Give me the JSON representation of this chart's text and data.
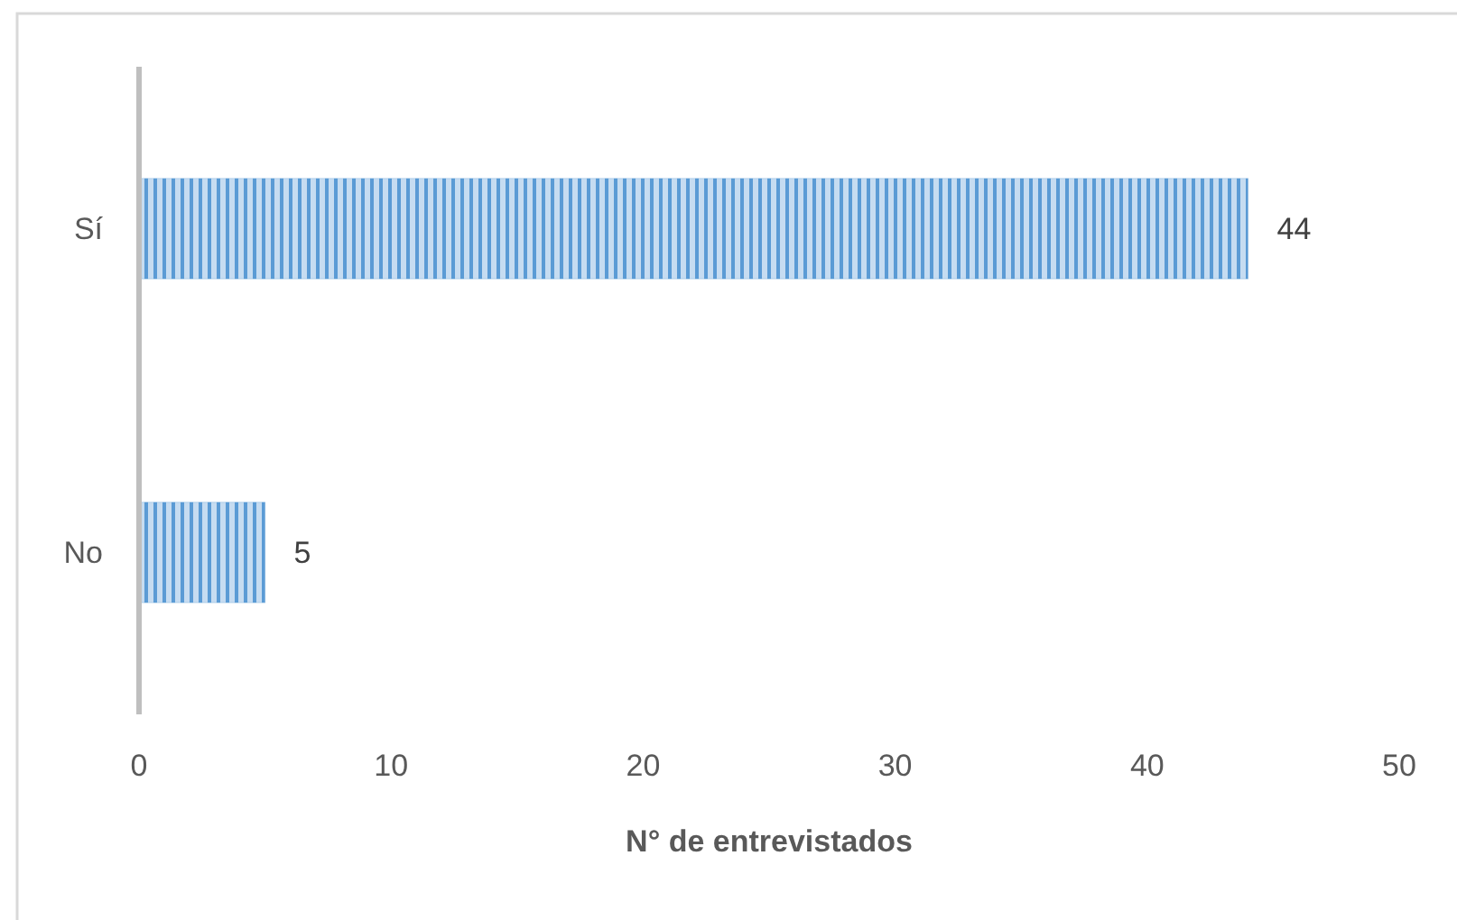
{
  "chart_data": {
    "type": "bar",
    "orientation": "horizontal",
    "categories": [
      "Sí",
      "No"
    ],
    "values": [
      44,
      5
    ],
    "color": "#5b9bd5",
    "xlim": [
      0,
      50
    ],
    "xticks": [
      0,
      10,
      20,
      30,
      40,
      50
    ],
    "xlabel": "N° de entrevistados",
    "data_labels": true,
    "grid": false
  }
}
